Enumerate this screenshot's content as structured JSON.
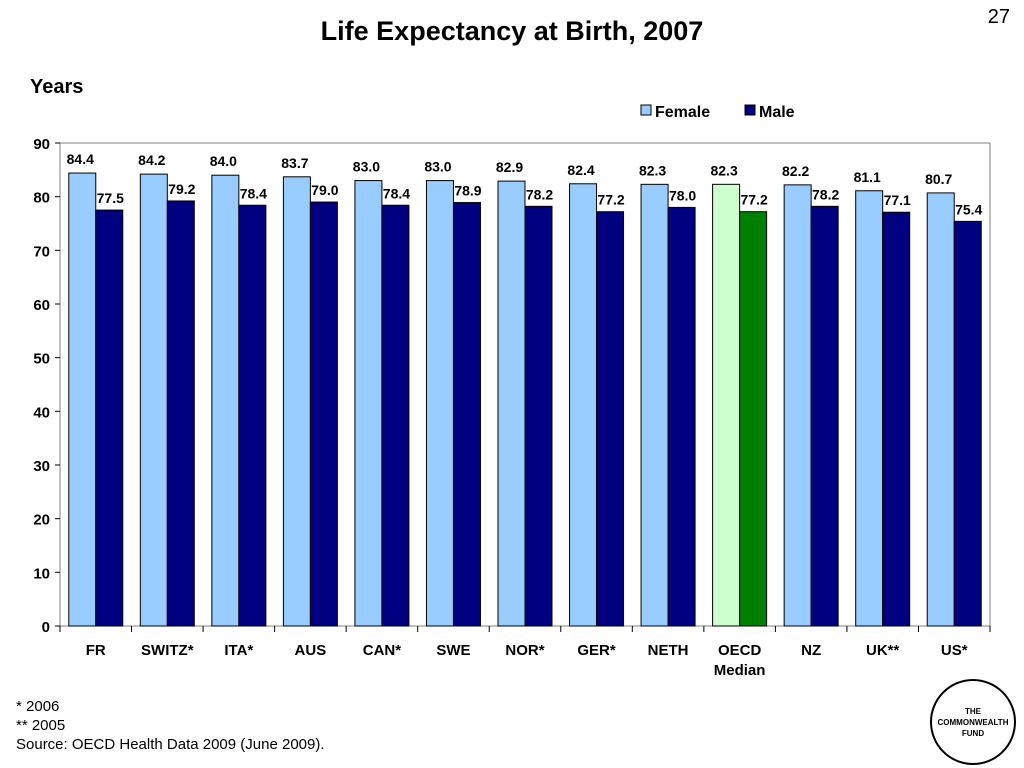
{
  "page_number": "27",
  "logo_lines": [
    "THE",
    "COMMONWEALTH",
    "FUND"
  ],
  "footnotes": {
    "note1": "* 2006",
    "note2": "** 2005",
    "source": "Source: OECD Health Data 2009 (June 2009)."
  },
  "colors": {
    "female": "#99ccff",
    "male": "#000080",
    "oecd_female": "#ccffcc",
    "oecd_male": "#008000"
  },
  "chart_data": {
    "type": "bar",
    "title": "Life Expectancy at Birth, 2007",
    "ylabel": "Years",
    "xlabel": "",
    "ylim": [
      0,
      90
    ],
    "yticks": [
      0,
      10,
      20,
      30,
      40,
      50,
      60,
      70,
      80,
      90
    ],
    "grid": false,
    "legend_position": "top-right",
    "categories": [
      "FR",
      "SWITZ*",
      "ITA*",
      "AUS",
      "CAN*",
      "SWE",
      "NOR*",
      "GER*",
      "NETH",
      "OECD Median",
      "NZ",
      "UK**",
      "US*"
    ],
    "highlight_category": "OECD Median",
    "series": [
      {
        "name": "Female",
        "values": [
          84.4,
          84.2,
          84.0,
          83.7,
          83.0,
          83.0,
          82.9,
          82.4,
          82.3,
          82.3,
          82.2,
          81.1,
          80.7
        ]
      },
      {
        "name": "Male",
        "values": [
          77.5,
          79.2,
          78.4,
          79.0,
          78.4,
          78.9,
          78.2,
          77.2,
          78.0,
          77.2,
          78.2,
          77.1,
          75.4
        ]
      }
    ]
  }
}
